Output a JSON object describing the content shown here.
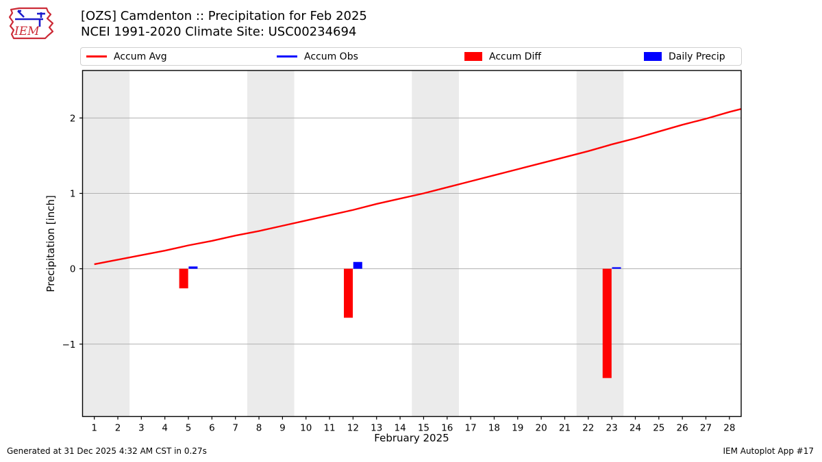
{
  "header": {
    "logo_text": "IEM",
    "title_line1": "[OZS] Camdenton :: Precipitation for Feb 2025",
    "title_line2": "NCEI 1991-2020 Climate Site: USC00234694"
  },
  "legend": {
    "items": [
      {
        "label": "Accum Avg",
        "swatch": "line",
        "color": "#ff0000"
      },
      {
        "label": "Accum Obs",
        "swatch": "line",
        "color": "#0000ff"
      },
      {
        "label": "Accum Diff",
        "swatch": "rect",
        "color": "#ff0000"
      },
      {
        "label": "Daily Precip",
        "swatch": "rect",
        "color": "#0000ff"
      }
    ]
  },
  "chart_data": {
    "type": "line+bar",
    "title": "[OZS] Camdenton :: Precipitation for Feb 2025",
    "subtitle": "NCEI 1991-2020 Climate Site: USC00234694",
    "xlabel": "February 2025",
    "ylabel": "Precipitation [inch]",
    "xlim": [
      0.5,
      28.5
    ],
    "ylim": [
      -1.96,
      2.63
    ],
    "xticks": [
      1,
      2,
      3,
      4,
      5,
      6,
      7,
      8,
      9,
      10,
      11,
      12,
      13,
      14,
      15,
      16,
      17,
      18,
      19,
      20,
      21,
      22,
      23,
      24,
      25,
      26,
      27,
      28
    ],
    "yticks": [
      -1,
      0,
      1,
      2
    ],
    "ytick_labels": [
      "−1",
      "0",
      "1",
      "2"
    ],
    "grid": "horizontal",
    "grid_color": "#b0b0b0",
    "weekend_bands": {
      "color": "#ebebeb",
      "ranges": [
        [
          0.5,
          2.5
        ],
        [
          7.5,
          9.5
        ],
        [
          14.5,
          16.5
        ],
        [
          21.5,
          23.5
        ]
      ]
    },
    "series": [
      {
        "name": "Accum Avg",
        "type": "line",
        "color": "#ff0000",
        "points": [
          [
            1,
            0.06
          ],
          [
            2,
            0.12
          ],
          [
            3,
            0.18
          ],
          [
            4,
            0.24
          ],
          [
            5,
            0.31
          ],
          [
            6,
            0.37
          ],
          [
            7,
            0.44
          ],
          [
            8,
            0.5
          ],
          [
            9,
            0.57
          ],
          [
            10,
            0.64
          ],
          [
            11,
            0.71
          ],
          [
            12,
            0.78
          ],
          [
            13,
            0.86
          ],
          [
            14,
            0.93
          ],
          [
            15,
            1.0
          ],
          [
            16,
            1.08
          ],
          [
            17,
            1.16
          ],
          [
            18,
            1.24
          ],
          [
            19,
            1.32
          ],
          [
            20,
            1.4
          ],
          [
            21,
            1.48
          ],
          [
            22,
            1.56
          ],
          [
            23,
            1.65
          ],
          [
            24,
            1.73
          ],
          [
            25,
            1.82
          ],
          [
            26,
            1.91
          ],
          [
            27,
            1.99
          ],
          [
            28,
            2.08
          ],
          [
            28.5,
            2.12
          ]
        ]
      },
      {
        "name": "Accum Obs",
        "type": "line",
        "color": "#0000ff",
        "visible": false,
        "points": []
      },
      {
        "name": "Accum Diff",
        "type": "bar",
        "color": "#ff0000",
        "day_offset": -0.2,
        "bar_width": 0.38,
        "days": [
          5,
          12,
          23
        ],
        "values": [
          -0.26,
          -0.65,
          -1.45
        ]
      },
      {
        "name": "Daily Precip",
        "type": "bar",
        "color": "#0000ff",
        "day_offset": 0.2,
        "bar_width": 0.38,
        "days": [
          5,
          12,
          23
        ],
        "values": [
          0.03,
          0.09,
          0.02
        ]
      }
    ]
  },
  "footer": {
    "left": "Generated at 31 Dec 2025 4:32 AM CST in 0.27s",
    "right": "IEM Autoplot App #17"
  }
}
